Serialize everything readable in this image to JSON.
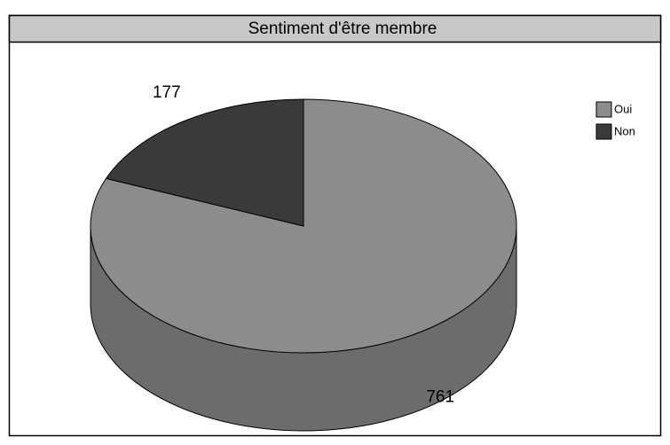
{
  "chart_data": {
    "type": "pie",
    "title": "Sentiment d'être membre",
    "categories": [
      "Oui",
      "Non"
    ],
    "values": [
      761,
      177
    ],
    "colors": [
      "#8c8c8c",
      "#3a3a3a"
    ],
    "side_colors": [
      "#6c6c6c",
      "#262626"
    ],
    "legend": "top-right"
  }
}
